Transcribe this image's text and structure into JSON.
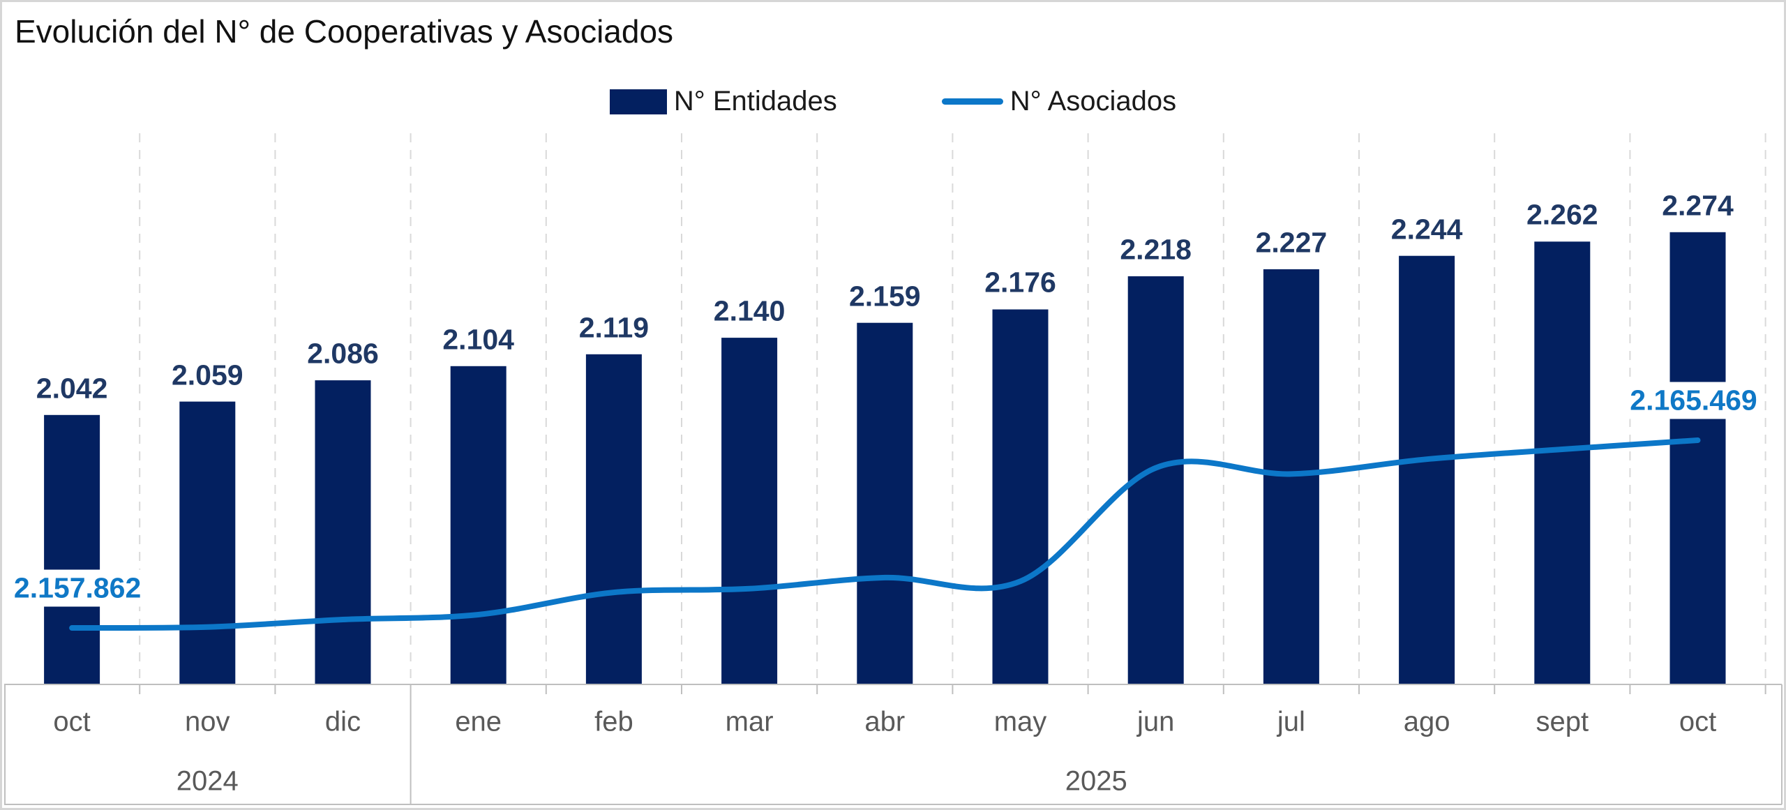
{
  "title": "Evolución del N° de Cooperativas y Asociados",
  "legend": [
    {
      "label": "N° Entidades"
    },
    {
      "label": "N° Asociados"
    }
  ],
  "chart_data": {
    "type": "bar",
    "subtype": "bar-line-combo",
    "title": "Evolución del N° de Cooperativas y Asociados",
    "categories": [
      "oct",
      "nov",
      "dic",
      "ene",
      "feb",
      "mar",
      "abr",
      "may",
      "jun",
      "jul",
      "ago",
      "sept",
      "oct"
    ],
    "year_groups": [
      {
        "label": "2024",
        "months": 3
      },
      {
        "label": "2025",
        "months": 10
      }
    ],
    "series": [
      {
        "name": "N° Entidades",
        "type": "bar",
        "color": "#032060",
        "label_color": "#1F3864",
        "values": [
          2042,
          2059,
          2086,
          2104,
          2119,
          2140,
          2159,
          2176,
          2218,
          2227,
          2244,
          2262,
          2274
        ],
        "labels": [
          "2.042",
          "2.059",
          "2.086",
          "2.104",
          "2.119",
          "2.140",
          "2.159",
          "2.176",
          "2.218",
          "2.227",
          "2.244",
          "2.262",
          "2.274"
        ],
        "axis_range_estimate": [
          1700,
          2400
        ]
      },
      {
        "name": "N° Asociados",
        "type": "line",
        "color": "#0C77C8",
        "label_color": "#0F78C6",
        "values": [
          2157862,
          2157900,
          2158200,
          2158400,
          2159300,
          2159450,
          2159900,
          2159750,
          2164350,
          2164100,
          2164700,
          2165100,
          2165469
        ],
        "point_labels": [
          {
            "index": 0,
            "text": "2.157.862"
          },
          {
            "index": 12,
            "text": "2.165.469"
          }
        ]
      }
    ],
    "grid": "vertical dashed lines between categories",
    "grid_color": "#D9D9D9",
    "axis_color": "#BFBFBF",
    "category_label_color": "#595959",
    "legend_position": "top-center",
    "y_axis_visible": false
  }
}
